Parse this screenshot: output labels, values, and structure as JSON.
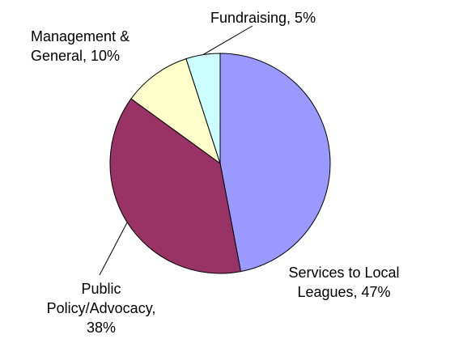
{
  "chart_data": {
    "type": "pie",
    "slices": [
      {
        "name": "Services to Local Leagues",
        "value": 47,
        "color": "#9999ff",
        "label_lines": [
          "Services to Local",
          "Leagues, 47%"
        ]
      },
      {
        "name": "Public Policy/Advocacy",
        "value": 38,
        "color": "#993366",
        "label_lines": [
          "Public",
          "Policy/Advocacy,",
          "38%"
        ]
      },
      {
        "name": "Management & General",
        "value": 10,
        "color": "#ffffcc",
        "label_lines": [
          "Management &",
          "General, 10%"
        ]
      },
      {
        "name": "Fundraising",
        "value": 5,
        "color": "#ccffff",
        "label_lines": [
          "Fundraising, 5%"
        ]
      }
    ],
    "start": "12 o'clock",
    "direction": "clockwise",
    "legend": "none",
    "title": ""
  }
}
